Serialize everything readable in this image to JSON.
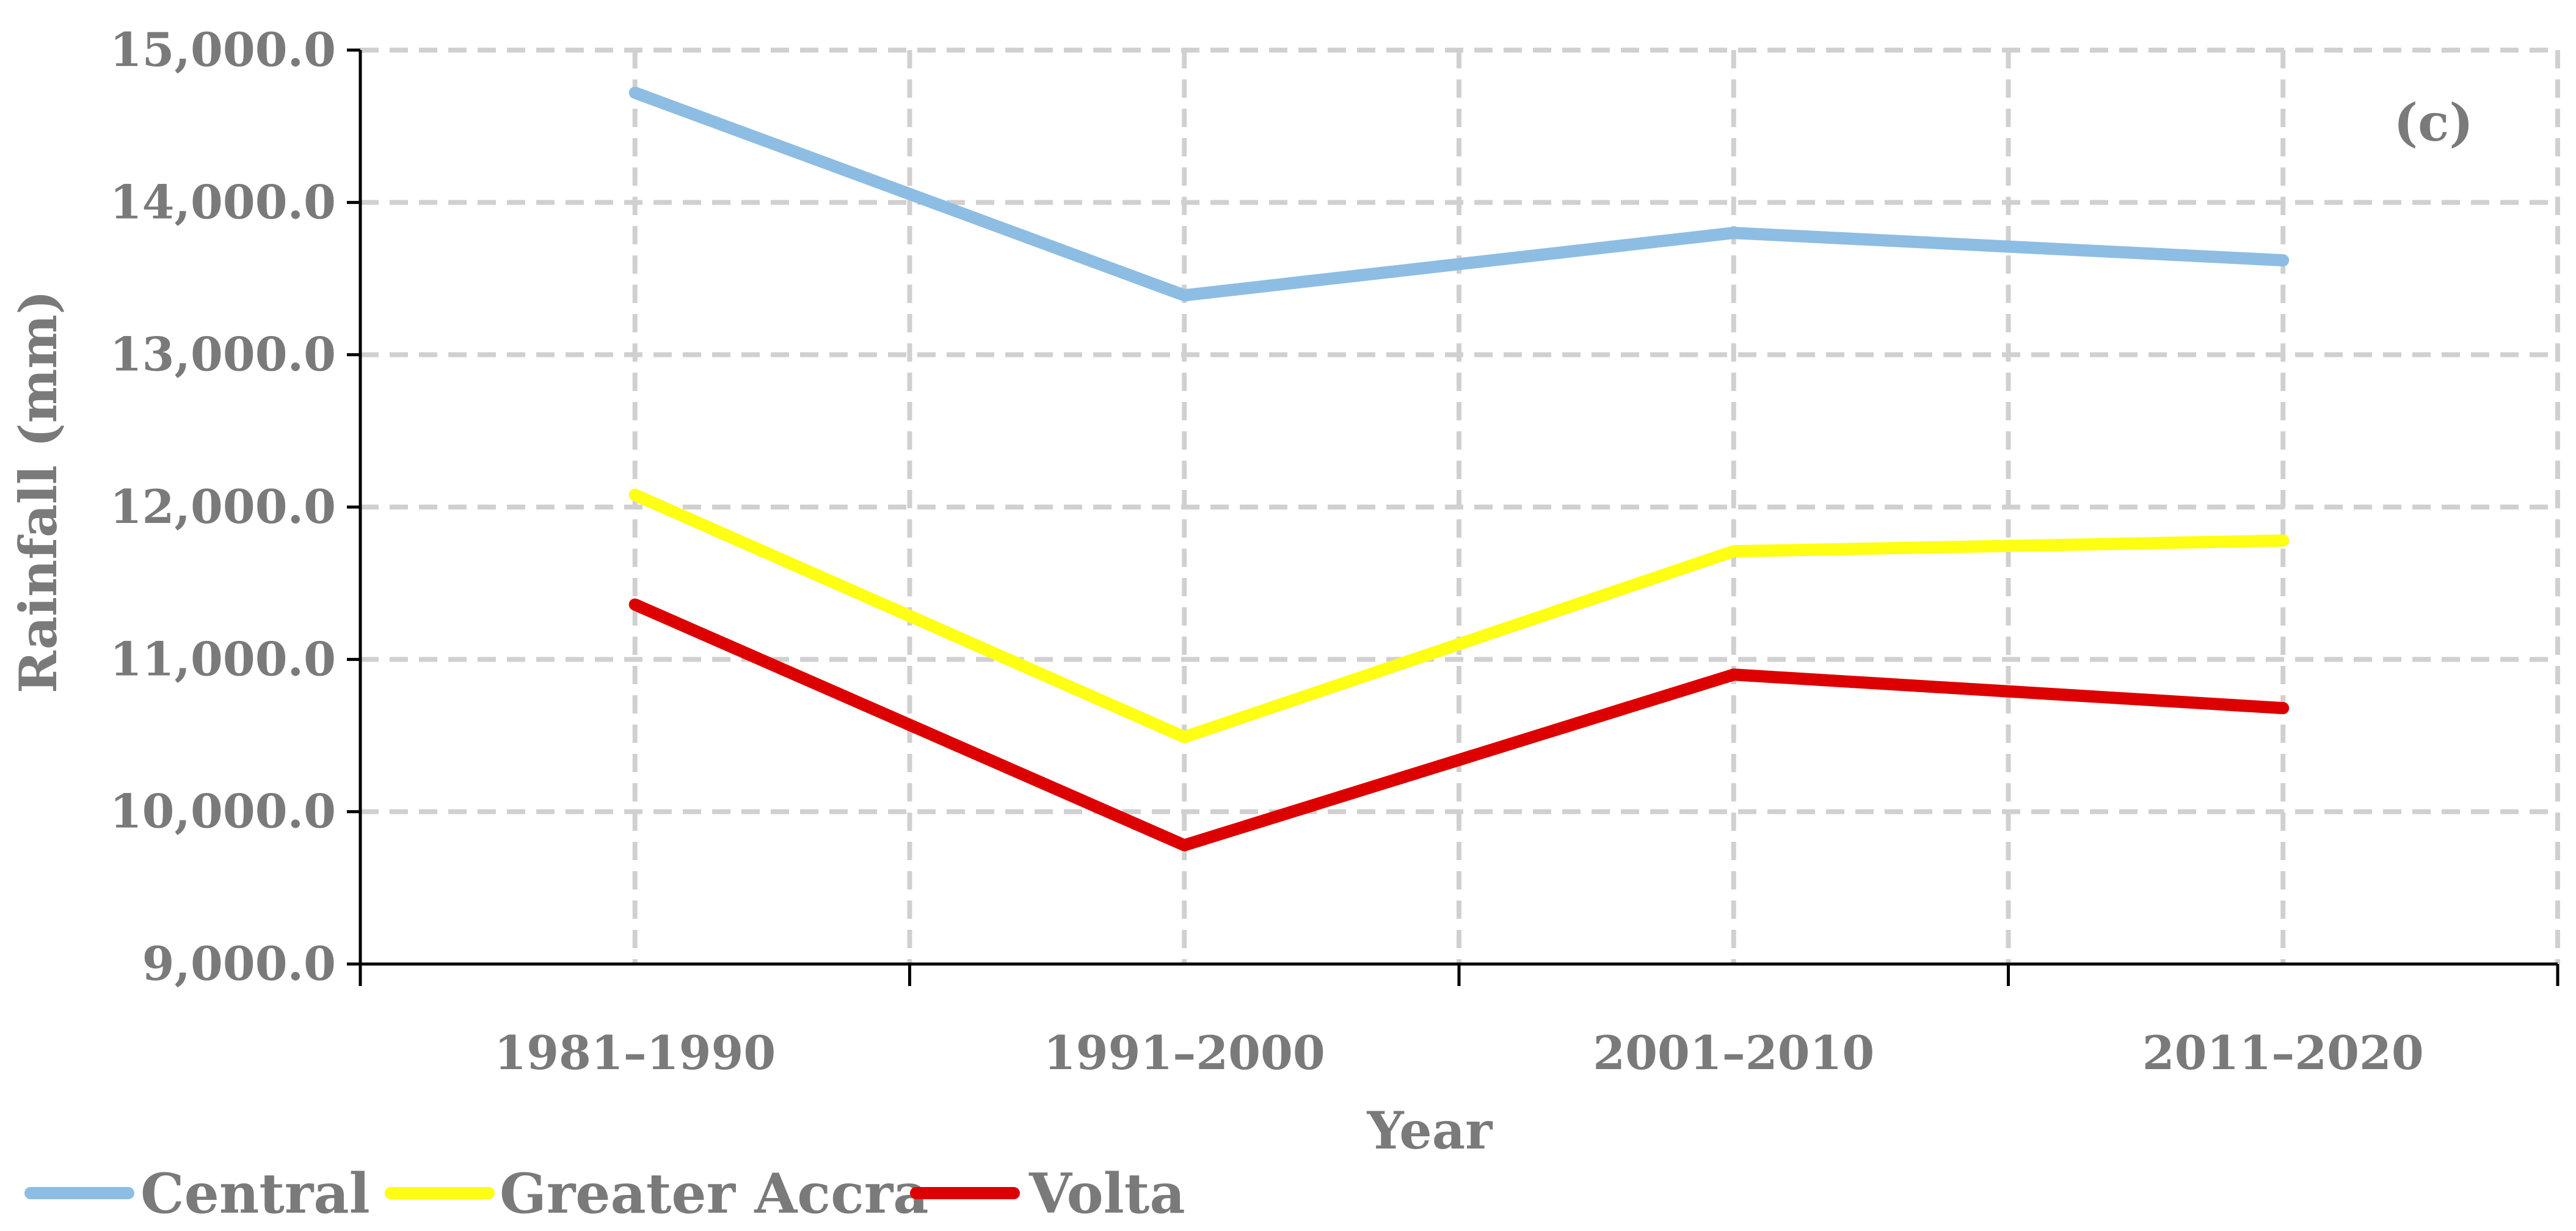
{
  "chart_data": {
    "type": "line",
    "panel_label": "(c)",
    "xlabel": "Year",
    "ylabel": "Rainfall (mm)",
    "categories": [
      "1981–1990",
      "1991–2000",
      "2001–2010",
      "2011–2020"
    ],
    "ylim": [
      9000,
      15000
    ],
    "y_ticks": [
      9000,
      10000,
      11000,
      12000,
      13000,
      14000,
      15000
    ],
    "y_tick_labels": [
      "9,000.0",
      "10,000.0",
      "11,000.0",
      "12,000.0",
      "13,000.0",
      "14,000.0",
      "15,000.0"
    ],
    "grid": true,
    "legend_position": "bottom-left",
    "series": [
      {
        "name": "Central",
        "color": "#8ebde3",
        "values": [
          14720,
          13390,
          13800,
          13620
        ]
      },
      {
        "name": "Greater Accra",
        "color": "#ffff14",
        "values": [
          12080,
          10490,
          11710,
          11780
        ]
      },
      {
        "name": "Volta",
        "color": "#dd0000",
        "values": [
          11360,
          9780,
          10900,
          10680
        ]
      }
    ]
  }
}
